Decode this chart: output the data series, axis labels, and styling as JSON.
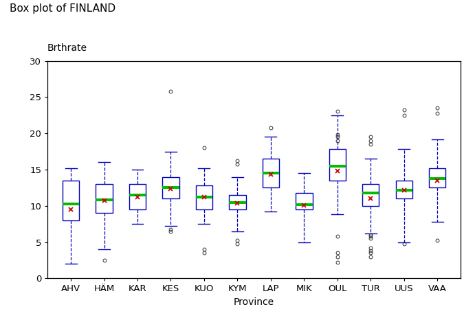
{
  "title": "Box plot of FINLAND",
  "ylabel": "Brthrate",
  "xlabel": "Province",
  "ylim": [
    0,
    30
  ],
  "yticks": [
    0,
    5,
    10,
    15,
    20,
    25,
    30
  ],
  "provinces": [
    "AHV",
    "HÄM",
    "KAR",
    "KES",
    "KUO",
    "KYM",
    "LAP",
    "MIK",
    "OUL",
    "TUR",
    "UUS",
    "VAA"
  ],
  "boxes": {
    "AHV": {
      "q1": 8.0,
      "median": 10.3,
      "q3": 13.5,
      "mean": 9.5,
      "whislo": 2.0,
      "whishi": 15.2,
      "fliers_low": [],
      "fliers_high": []
    },
    "HÄM": {
      "q1": 9.0,
      "median": 10.8,
      "q3": 13.0,
      "mean": 10.7,
      "whislo": 4.0,
      "whishi": 16.0,
      "fliers_low": [
        2.5
      ],
      "fliers_high": []
    },
    "KAR": {
      "q1": 9.5,
      "median": 11.5,
      "q3": 13.0,
      "mean": 11.2,
      "whislo": 7.5,
      "whishi": 15.0,
      "fliers_low": [],
      "fliers_high": []
    },
    "KES": {
      "q1": 11.0,
      "median": 12.5,
      "q3": 14.0,
      "mean": 12.3,
      "whislo": 7.2,
      "whishi": 17.5,
      "fliers_low": [
        6.5,
        6.8
      ],
      "fliers_high": [
        25.8
      ]
    },
    "KUO": {
      "q1": 9.5,
      "median": 11.2,
      "q3": 12.8,
      "mean": 11.2,
      "whislo": 7.5,
      "whishi": 15.2,
      "fliers_low": [
        4.0,
        3.5
      ],
      "fliers_high": [
        18.0
      ]
    },
    "KYM": {
      "q1": 9.5,
      "median": 10.5,
      "q3": 11.5,
      "mean": 10.4,
      "whislo": 6.5,
      "whishi": 14.0,
      "fliers_low": [
        4.8,
        5.2
      ],
      "fliers_high": [
        15.8,
        16.2
      ]
    },
    "LAP": {
      "q1": 12.5,
      "median": 14.5,
      "q3": 16.5,
      "mean": 14.3,
      "whislo": 9.2,
      "whishi": 19.5,
      "fliers_low": [],
      "fliers_high": [
        20.8
      ]
    },
    "MIK": {
      "q1": 9.5,
      "median": 10.2,
      "q3": 11.8,
      "mean": 10.1,
      "whislo": 5.0,
      "whishi": 14.5,
      "fliers_low": [],
      "fliers_high": []
    },
    "OUL": {
      "q1": 13.5,
      "median": 15.5,
      "q3": 17.8,
      "mean": 14.8,
      "whislo": 8.8,
      "whishi": 22.5,
      "fliers_low": [
        2.2,
        3.0,
        3.5,
        5.8
      ],
      "fliers_high": [
        19.0,
        19.5,
        19.8,
        23.0
      ]
    },
    "TUR": {
      "q1": 10.0,
      "median": 11.8,
      "q3": 13.0,
      "mean": 11.0,
      "whislo": 6.2,
      "whishi": 16.5,
      "fliers_low": [
        3.0,
        3.5,
        3.8,
        4.2,
        5.5,
        5.8,
        6.0
      ],
      "fliers_high": [
        18.5,
        19.0,
        19.5
      ]
    },
    "UUS": {
      "q1": 11.0,
      "median": 12.2,
      "q3": 13.5,
      "mean": 12.2,
      "whislo": 5.0,
      "whishi": 17.8,
      "fliers_low": [
        4.8
      ],
      "fliers_high": [
        22.5,
        23.2
      ]
    },
    "VAA": {
      "q1": 12.5,
      "median": 13.8,
      "q3": 15.2,
      "mean": 13.5,
      "whislo": 7.8,
      "whishi": 19.2,
      "fliers_low": [
        5.2
      ],
      "fliers_high": [
        22.8,
        23.5
      ]
    }
  },
  "box_color": "#0000bb",
  "median_color": "#00bb00",
  "mean_color": "#cc0000",
  "flier_color": "#333333",
  "background_color": "#ffffff",
  "title_fontsize": 11,
  "label_fontsize": 10,
  "tick_fontsize": 9.5
}
